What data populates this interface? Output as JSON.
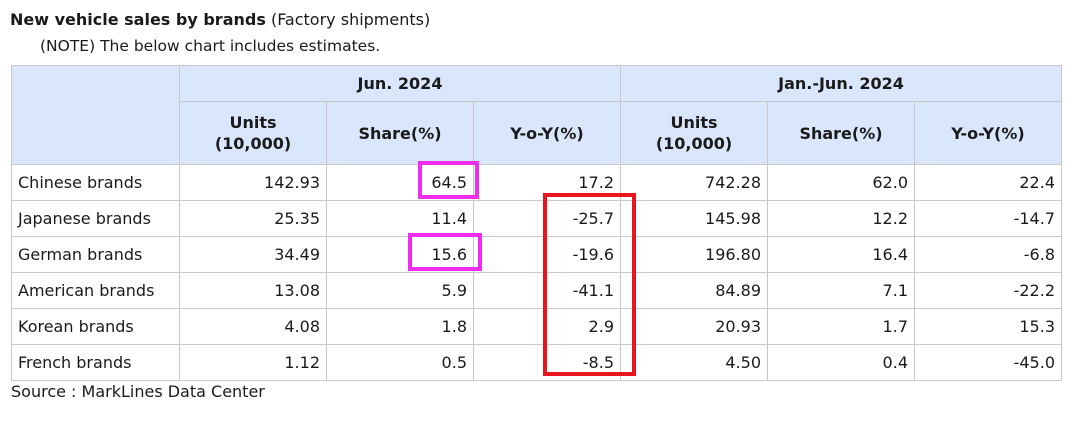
{
  "title": {
    "main": "New vehicle sales by brands",
    "sub": "(Factory shipments)"
  },
  "note": "(NOTE) The below chart includes estimates.",
  "periods": [
    "Jun. 2024",
    "Jan.-Jun. 2024"
  ],
  "columns": {
    "units": "Units",
    "units_unit": "(10,000)",
    "share": "Share(%)",
    "yoy": "Y-o-Y(%)"
  },
  "rows": [
    {
      "brand": "Chinese brands",
      "jun_units": "142.93",
      "jun_share": "64.5",
      "jun_yoy": "17.2",
      "h1_units": "742.28",
      "h1_share": "62.0",
      "h1_yoy": "22.4"
    },
    {
      "brand": "Japanese brands",
      "jun_units": "25.35",
      "jun_share": "11.4",
      "jun_yoy": "-25.7",
      "h1_units": "145.98",
      "h1_share": "12.2",
      "h1_yoy": "-14.7"
    },
    {
      "brand": "German brands",
      "jun_units": "34.49",
      "jun_share": "15.6",
      "jun_yoy": "-19.6",
      "h1_units": "196.80",
      "h1_share": "16.4",
      "h1_yoy": "-6.8"
    },
    {
      "brand": "American brands",
      "jun_units": "13.08",
      "jun_share": "5.9",
      "jun_yoy": "-41.1",
      "h1_units": "84.89",
      "h1_share": "7.1",
      "h1_yoy": "-22.2"
    },
    {
      "brand": "Korean brands",
      "jun_units": "4.08",
      "jun_share": "1.8",
      "jun_yoy": "2.9",
      "h1_units": "20.93",
      "h1_share": "1.7",
      "h1_yoy": "15.3"
    },
    {
      "brand": "French brands",
      "jun_units": "1.12",
      "jun_share": "0.5",
      "jun_yoy": "-8.5",
      "h1_units": "4.50",
      "h1_share": "0.4",
      "h1_yoy": "-45.0"
    }
  ],
  "source": "Source : MarkLines Data Center",
  "colors": {
    "header_bg": "#d9e6fb",
    "highlight_magenta": "#f02cf0",
    "highlight_red": "#e8141e"
  }
}
